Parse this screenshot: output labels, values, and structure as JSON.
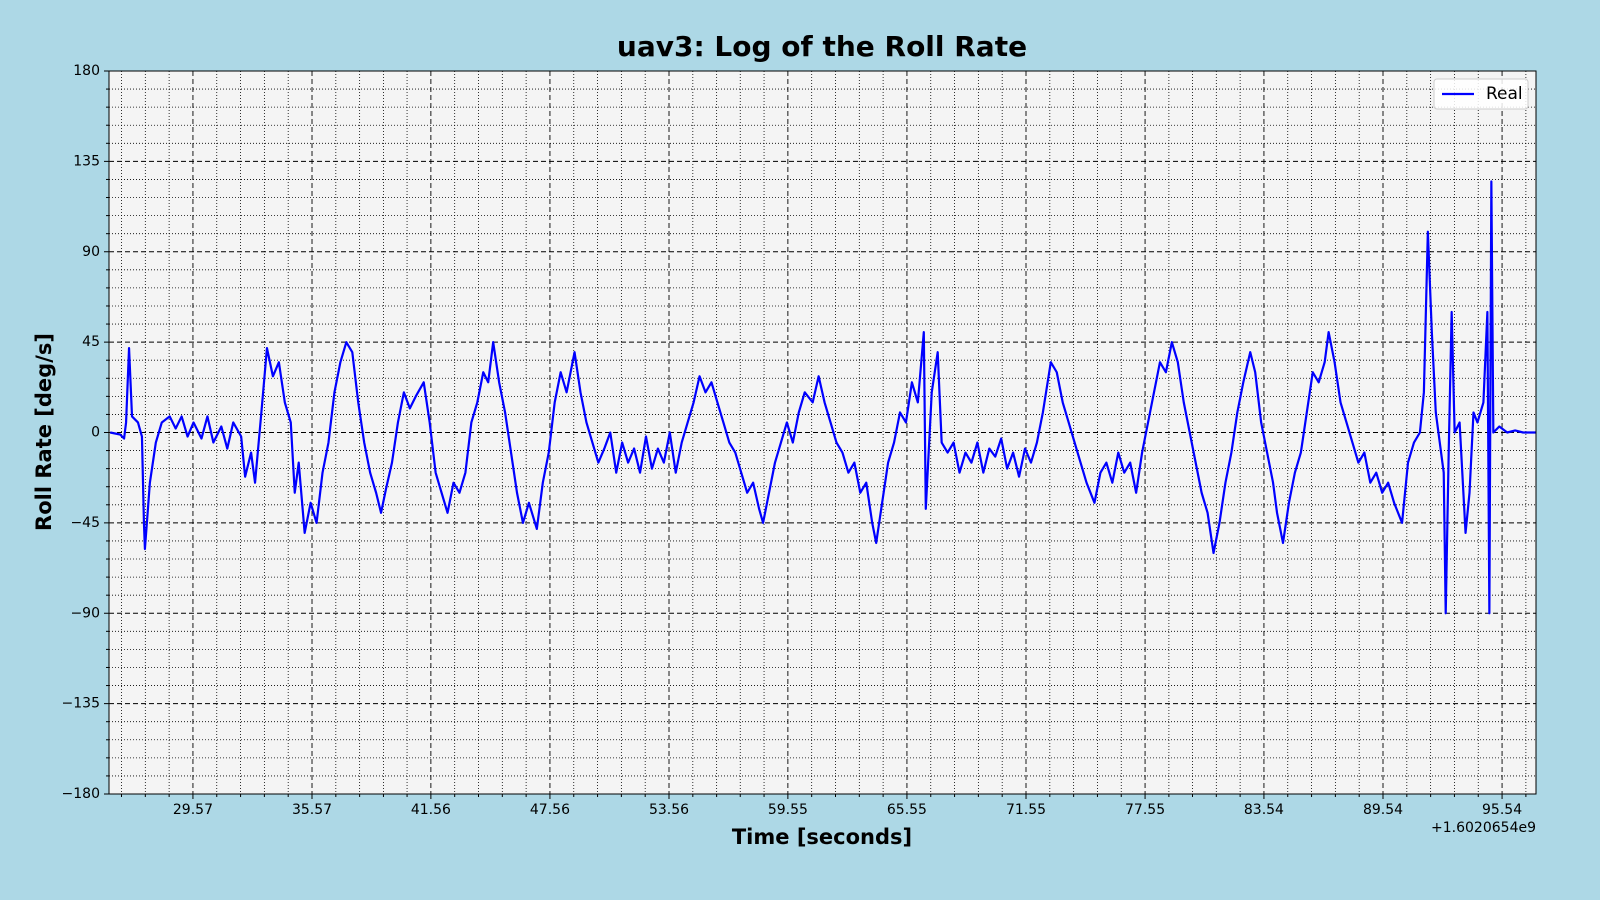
{
  "chart_data": {
    "type": "line",
    "title": "uav3: Log of the Roll Rate",
    "xlabel": "Time [seconds]",
    "ylabel": "Roll Rate [deg/s]",
    "x_offset_label": "+1.6020654e9",
    "xlim": [
      25.34,
      97.25
    ],
    "ylim": [
      -180,
      180
    ],
    "xticks": [
      29.57,
      35.57,
      41.56,
      47.56,
      53.56,
      59.55,
      65.55,
      71.55,
      77.55,
      83.54,
      89.54,
      95.54
    ],
    "yticks": [
      {
        "value": -180,
        "label": "−180"
      },
      {
        "value": -135,
        "label": "−135"
      },
      {
        "value": -90,
        "label": "−90"
      },
      {
        "value": -45,
        "label": "−45"
      },
      0,
      45,
      90,
      135,
      180
    ],
    "xminor_ticks": [
      25.97,
      27.17,
      28.37,
      30.77,
      31.97,
      33.17,
      34.37,
      36.77,
      37.97,
      39.17,
      40.36,
      42.76,
      43.96,
      45.16,
      46.36,
      48.76,
      49.96,
      51.16,
      52.36,
      54.76,
      55.96,
      57.15,
      58.35,
      60.75,
      61.95,
      63.15,
      64.35,
      66.75,
      67.95,
      69.15,
      70.35,
      72.75,
      73.95,
      75.15,
      76.35,
      78.75,
      79.94,
      81.14,
      82.34,
      84.74,
      85.94,
      87.14,
      88.34,
      90.74,
      91.94,
      93.14,
      94.34,
      96.74
    ],
    "yminor_ticks": [
      -171,
      -162,
      -153,
      -144,
      -126,
      -117,
      -108,
      -99,
      -81,
      -72,
      -63,
      -54,
      -36,
      -27,
      -18,
      -9,
      9,
      18,
      27,
      36,
      54,
      63,
      72,
      81,
      99,
      108,
      117,
      126,
      144,
      153,
      162,
      171
    ],
    "grid": true,
    "legend": "upper right",
    "x": [
      25.4,
      25.9,
      26.1,
      26.2,
      26.35,
      26.5,
      26.8,
      27.0,
      27.1,
      27.15,
      27.4,
      27.7,
      28.0,
      28.4,
      28.7,
      29.0,
      29.3,
      29.6,
      30.0,
      30.3,
      30.6,
      31.0,
      31.3,
      31.6,
      32.0,
      32.2,
      32.5,
      32.7,
      33.0,
      33.3,
      33.6,
      33.9,
      34.2,
      34.5,
      34.7,
      34.9,
      35.2,
      35.5,
      35.8,
      36.1,
      36.4,
      36.7,
      37.0,
      37.3,
      37.6,
      37.9,
      38.2,
      38.5,
      38.8,
      39.05,
      39.3,
      39.6,
      39.9,
      40.2,
      40.5,
      40.8,
      41.2,
      41.5,
      41.8,
      42.1,
      42.4,
      42.7,
      43.0,
      43.3,
      43.6,
      43.9,
      44.2,
      44.45,
      44.7,
      45.0,
      45.3,
      45.6,
      45.9,
      46.2,
      46.5,
      46.9,
      47.2,
      47.5,
      47.8,
      48.1,
      48.4,
      48.8,
      49.1,
      49.4,
      49.7,
      50.0,
      50.3,
      50.6,
      50.9,
      51.2,
      51.5,
      51.8,
      52.1,
      52.4,
      52.7,
      53.0,
      53.3,
      53.6,
      53.9,
      54.2,
      54.5,
      54.8,
      55.1,
      55.4,
      55.7,
      56.0,
      56.3,
      56.6,
      56.9,
      57.2,
      57.5,
      57.8,
      58.1,
      58.3,
      58.6,
      58.9,
      59.2,
      59.5,
      59.8,
      60.1,
      60.4,
      60.8,
      61.1,
      61.4,
      61.7,
      62.0,
      62.3,
      62.6,
      62.9,
      63.2,
      63.5,
      63.8,
      64.0,
      64.3,
      64.6,
      64.9,
      65.2,
      65.5,
      65.8,
      66.1,
      66.4,
      66.5,
      66.8,
      67.1,
      67.3,
      67.6,
      67.9,
      68.2,
      68.5,
      68.8,
      69.1,
      69.4,
      69.7,
      70.0,
      70.3,
      70.6,
      70.9,
      71.2,
      71.5,
      71.8,
      72.1,
      72.4,
      72.8,
      73.1,
      73.4,
      73.7,
      74.0,
      74.3,
      74.6,
      75.0,
      75.3,
      75.6,
      75.9,
      76.2,
      76.5,
      76.8,
      77.1,
      77.4,
      77.7,
      78.0,
      78.3,
      78.6,
      78.9,
      79.2,
      79.5,
      79.8,
      80.1,
      80.4,
      80.7,
      81.0,
      81.3,
      81.6,
      81.9,
      82.2,
      82.5,
      82.85,
      83.1,
      83.4,
      83.7,
      84.0,
      84.2,
      84.5,
      84.8,
      85.1,
      85.4,
      85.7,
      86.0,
      86.3,
      86.6,
      86.8,
      87.1,
      87.4,
      87.7,
      88.0,
      88.3,
      88.6,
      88.9,
      89.2,
      89.5,
      89.8,
      90.1,
      90.5,
      90.8,
      91.1,
      91.4,
      91.6,
      91.8,
      92.0,
      92.2,
      92.4,
      92.6,
      92.7,
      92.85,
      93.0,
      93.15,
      93.4,
      93.7,
      93.9,
      94.1,
      94.3,
      94.6,
      94.8,
      94.9,
      95.0,
      95.1,
      95.4,
      95.8,
      96.2,
      96.6,
      97.0,
      97.25
    ],
    "series": [
      {
        "name": "Real",
        "color": "#0000ff",
        "values": [
          0,
          -1,
          -3,
          5,
          42,
          8,
          5,
          -2,
          -45,
          -58,
          -25,
          -5,
          5,
          8,
          2,
          8,
          -2,
          5,
          -3,
          8,
          -5,
          3,
          -8,
          5,
          -2,
          -22,
          -10,
          -25,
          8,
          42,
          28,
          35,
          15,
          5,
          -30,
          -15,
          -50,
          -35,
          -45,
          -20,
          -5,
          20,
          35,
          45,
          40,
          15,
          -5,
          -20,
          -30,
          -40,
          -28,
          -15,
          5,
          20,
          12,
          18,
          25,
          5,
          -20,
          -30,
          -40,
          -25,
          -30,
          -20,
          5,
          15,
          30,
          25,
          45,
          25,
          10,
          -10,
          -30,
          -45,
          -35,
          -48,
          -25,
          -10,
          15,
          30,
          20,
          40,
          20,
          5,
          -5,
          -15,
          -8,
          0,
          -20,
          -5,
          -15,
          -8,
          -20,
          -2,
          -18,
          -8,
          -15,
          0,
          -20,
          -5,
          5,
          15,
          28,
          20,
          25,
          15,
          5,
          -5,
          -10,
          -20,
          -30,
          -25,
          -38,
          -45,
          -30,
          -15,
          -5,
          5,
          -5,
          10,
          20,
          15,
          28,
          15,
          5,
          -5,
          -10,
          -20,
          -15,
          -30,
          -25,
          -45,
          -55,
          -35,
          -15,
          -5,
          10,
          5,
          25,
          15,
          50,
          -38,
          20,
          40,
          -5,
          -10,
          -5,
          -20,
          -10,
          -15,
          -5,
          -20,
          -8,
          -12,
          -3,
          -18,
          -10,
          -22,
          -8,
          -15,
          -5,
          10,
          35,
          30,
          15,
          5,
          -5,
          -15,
          -25,
          -35,
          -20,
          -15,
          -25,
          -10,
          -20,
          -15,
          -30,
          -10,
          5,
          20,
          35,
          30,
          45,
          35,
          15,
          0,
          -15,
          -30,
          -40,
          -60,
          -45,
          -25,
          -10,
          10,
          25,
          40,
          30,
          5,
          -10,
          -25,
          -40,
          -55,
          -35,
          -20,
          -10,
          10,
          30,
          25,
          35,
          50,
          35,
          15,
          5,
          -5,
          -15,
          -10,
          -25,
          -20,
          -30,
          -25,
          -35,
          -45,
          -15,
          -5,
          0,
          20,
          100,
          50,
          10,
          -5,
          -20,
          -90,
          -10,
          60,
          0,
          5,
          -50,
          -30,
          10,
          5,
          15,
          60,
          -90,
          125,
          0,
          3,
          0,
          1,
          0,
          0,
          0
        ]
      }
    ]
  }
}
